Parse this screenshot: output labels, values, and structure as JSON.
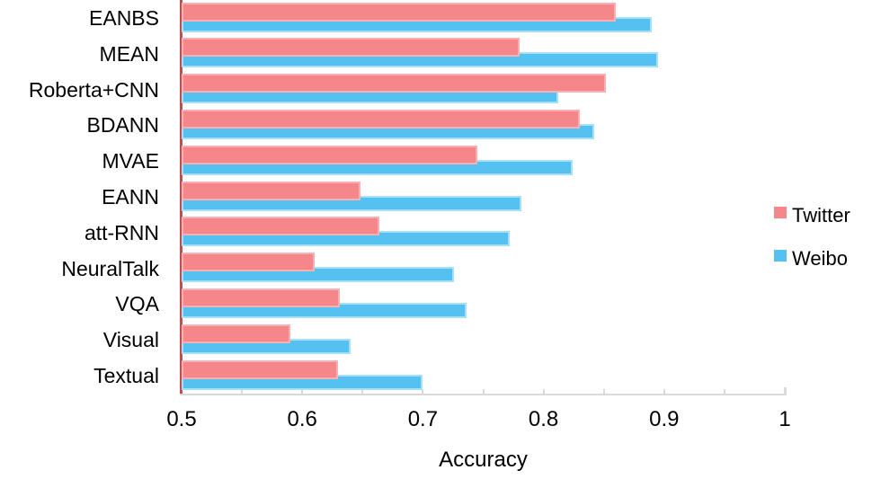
{
  "chart_data": {
    "type": "bar",
    "orientation": "horizontal",
    "title": "",
    "xlabel": "Accuracy",
    "xlim": [
      0.5,
      1.0
    ],
    "xticks": [
      0.5,
      0.6,
      0.7,
      0.8,
      0.9,
      1.0
    ],
    "xtick_labels": [
      "0.5",
      "0.6",
      "0.7",
      "0.8",
      "0.9",
      "1"
    ],
    "minor_tick_step": 0.05,
    "grid": false,
    "legend_position": "right",
    "categories": [
      "EANBS",
      "MEAN",
      "Roberta+CNN",
      "BDANN",
      "MVAE",
      "EANN",
      "att-RNN",
      "NeuralTalk",
      "VQA",
      "Visual",
      "Textual"
    ],
    "series": [
      {
        "name": "Twitter",
        "color": "#f5868a",
        "values": [
          0.86,
          0.78,
          0.852,
          0.83,
          0.745,
          0.648,
          0.664,
          0.61,
          0.631,
          0.59,
          0.63
        ]
      },
      {
        "name": "Weibo",
        "color": "#55c1f1",
        "values": [
          0.89,
          0.895,
          0.812,
          0.842,
          0.824,
          0.782,
          0.772,
          0.726,
          0.736,
          0.64,
          0.7
        ]
      }
    ]
  },
  "colors": {
    "twitter_bar": "#f5868a",
    "weibo_bar": "#55c1f1",
    "y_axis_line": "#bb4f52",
    "x_axis_line": "#d9d9d9",
    "text": "#000000",
    "background": "#ffffff"
  }
}
